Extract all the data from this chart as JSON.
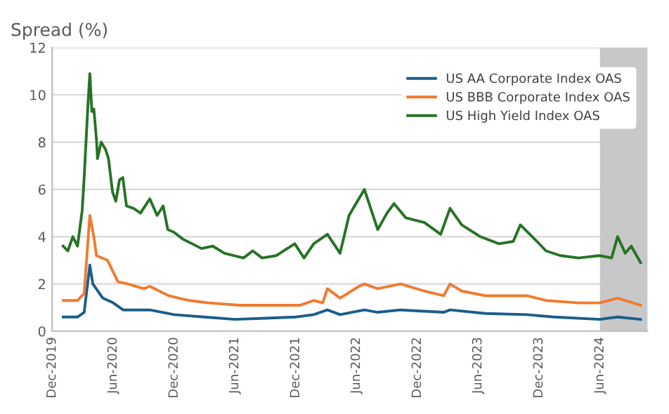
{
  "chart_data": {
    "type": "line",
    "title": "Spread (%)",
    "xlim": [
      "2019-12-01",
      "2024-10-22"
    ],
    "ylim": [
      0,
      12
    ],
    "yticks": [
      0,
      2,
      4,
      6,
      8,
      10,
      12
    ],
    "xticks": [
      {
        "value": "2019-12-01",
        "label": "Dec-2019"
      },
      {
        "value": "2020-06-01",
        "label": "Jun-2020"
      },
      {
        "value": "2020-12-01",
        "label": "Dec-2020"
      },
      {
        "value": "2021-06-01",
        "label": "Jun-2021"
      },
      {
        "value": "2021-12-01",
        "label": "Dec-2021"
      },
      {
        "value": "2022-06-01",
        "label": "Jun-2022"
      },
      {
        "value": "2022-12-01",
        "label": "Dec-2022"
      },
      {
        "value": "2023-06-01",
        "label": "Jun-2023"
      },
      {
        "value": "2023-12-01",
        "label": "Dec-2023"
      },
      {
        "value": "2024-06-01",
        "label": "Jun-2024"
      }
    ],
    "grid": "y",
    "legend": "top right",
    "bands": [
      {
        "axis": "x",
        "from": "2024-06-01",
        "to": "2024-10-22",
        "color": "#c8c8c8"
      }
    ],
    "series": [
      {
        "name": "US AA Corporate Index OAS",
        "color": "#1a5f8a",
        "x": [
          "2020-01-03",
          "2020-02-15",
          "2020-03-06",
          "2020-03-23",
          "2020-04-01",
          "2020-05-01",
          "2020-06-01",
          "2020-07-01",
          "2020-09-19",
          "2020-12-01",
          "2021-03-01",
          "2021-06-01",
          "2021-09-01",
          "2021-12-01",
          "2022-01-24",
          "2022-03-06",
          "2022-04-13",
          "2022-06-25",
          "2022-08-04",
          "2022-10-12",
          "2023-02-18",
          "2023-03-09",
          "2023-06-24",
          "2023-10-26",
          "2024-01-15",
          "2024-05-31",
          "2024-07-24",
          "2024-10-01"
        ],
        "values": [
          0.6,
          0.6,
          0.8,
          2.8,
          2.0,
          1.4,
          1.2,
          0.9,
          0.9,
          0.7,
          0.6,
          0.5,
          0.55,
          0.6,
          0.7,
          0.9,
          0.7,
          0.9,
          0.8,
          0.9,
          0.8,
          0.9,
          0.75,
          0.7,
          0.6,
          0.5,
          0.6,
          0.5
        ]
      },
      {
        "name": "US BBB Corporate Index OAS",
        "color": "#f07b30",
        "x": [
          "2020-01-03",
          "2020-02-15",
          "2020-03-06",
          "2020-03-23",
          "2020-04-04",
          "2020-04-12",
          "2020-05-15",
          "2020-06-15",
          "2020-07-15",
          "2020-09-01",
          "2020-09-19",
          "2020-11-15",
          "2021-01-15",
          "2021-03-15",
          "2021-06-15",
          "2021-09-15",
          "2021-12-15",
          "2022-01-24",
          "2022-02-20",
          "2022-03-06",
          "2022-04-13",
          "2022-06-09",
          "2022-06-25",
          "2022-08-04",
          "2022-10-12",
          "2022-12-22",
          "2023-02-18",
          "2023-03-09",
          "2023-04-13",
          "2023-06-24",
          "2023-10-26",
          "2023-12-22",
          "2024-03-29",
          "2024-05-31",
          "2024-07-24",
          "2024-10-01"
        ],
        "values": [
          1.3,
          1.3,
          1.6,
          4.9,
          4.0,
          3.2,
          3.0,
          2.1,
          2.0,
          1.8,
          1.9,
          1.5,
          1.3,
          1.2,
          1.1,
          1.1,
          1.1,
          1.3,
          1.2,
          1.8,
          1.4,
          1.9,
          2.0,
          1.8,
          2.0,
          1.7,
          1.5,
          2.0,
          1.7,
          1.5,
          1.5,
          1.3,
          1.2,
          1.2,
          1.4,
          1.1
        ]
      },
      {
        "name": "US High Yield Index OAS",
        "color": "#267326",
        "x": [
          "2020-01-03",
          "2020-01-17",
          "2020-02-01",
          "2020-02-15",
          "2020-02-29",
          "2020-03-06",
          "2020-03-17",
          "2020-03-23",
          "2020-03-29",
          "2020-04-04",
          "2020-04-12",
          "2020-04-15",
          "2020-04-26",
          "2020-05-09",
          "2020-05-18",
          "2020-05-30",
          "2020-06-09",
          "2020-06-20",
          "2020-06-30",
          "2020-07-11",
          "2020-08-01",
          "2020-08-22",
          "2020-09-19",
          "2020-10-11",
          "2020-10-29",
          "2020-11-12",
          "2020-11-29",
          "2020-12-27",
          "2021-01-24",
          "2021-02-21",
          "2021-03-27",
          "2021-05-01",
          "2021-05-28",
          "2021-06-27",
          "2021-07-25",
          "2021-08-22",
          "2021-10-04",
          "2021-11-28",
          "2021-12-26",
          "2022-01-24",
          "2022-03-06",
          "2022-04-13",
          "2022-05-10",
          "2022-06-25",
          "2022-08-04",
          "2022-09-01",
          "2022-09-22",
          "2022-10-27",
          "2022-12-22",
          "2023-02-09",
          "2023-03-09",
          "2023-04-13",
          "2023-06-08",
          "2023-08-03",
          "2023-09-15",
          "2023-10-06",
          "2023-11-25",
          "2023-12-22",
          "2024-02-03",
          "2024-03-29",
          "2024-05-31",
          "2024-07-06",
          "2024-07-24",
          "2024-08-16",
          "2024-09-03",
          "2024-10-01"
        ],
        "values": [
          3.6,
          3.4,
          4.0,
          3.6,
          5.1,
          6.5,
          9.5,
          10.9,
          9.3,
          9.4,
          8.1,
          7.3,
          8.0,
          7.7,
          7.3,
          5.9,
          5.5,
          6.4,
          6.5,
          5.3,
          5.2,
          5.0,
          5.6,
          4.9,
          5.3,
          4.3,
          4.2,
          3.9,
          3.7,
          3.5,
          3.6,
          3.3,
          3.2,
          3.1,
          3.4,
          3.1,
          3.2,
          3.7,
          3.1,
          3.7,
          4.1,
          3.3,
          4.9,
          6.0,
          4.3,
          5.0,
          5.4,
          4.8,
          4.6,
          4.1,
          5.2,
          4.5,
          4.0,
          3.7,
          3.8,
          4.5,
          3.8,
          3.4,
          3.2,
          3.1,
          3.2,
          3.1,
          4.0,
          3.3,
          3.6,
          2.9
        ]
      }
    ]
  }
}
